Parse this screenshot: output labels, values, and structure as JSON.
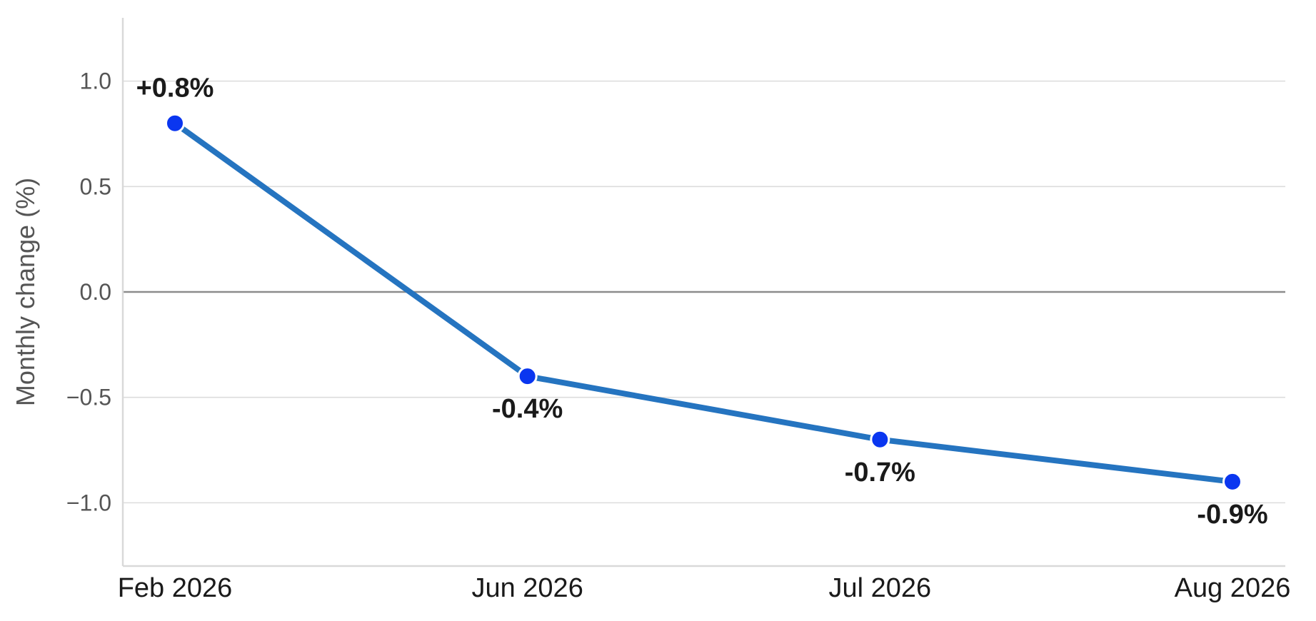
{
  "chart_data": {
    "type": "line",
    "title": "",
    "xlabel": "",
    "ylabel": "Monthly change (%)",
    "categories": [
      "Feb 2026",
      "Jun 2026",
      "Jul 2026",
      "Aug 2026"
    ],
    "series": [
      {
        "values": [
          0.8,
          -0.4,
          -0.7,
          -0.9
        ],
        "data_labels": [
          "+0.8%",
          "-0.4%",
          "-0.7%",
          "-0.9%"
        ],
        "line_color": "#2574c0",
        "marker_color": "#0a36f0"
      }
    ],
    "ylim": [
      -1.3,
      1.3
    ],
    "yticks": [
      1.0,
      0.5,
      0.0,
      -0.5,
      -1.0
    ],
    "ytick_labels": [
      "1.0",
      "0.5",
      "0.0",
      "−0.5",
      "−1.0"
    ],
    "grid": "horizontal",
    "zero_line": true,
    "legend": "none"
  }
}
